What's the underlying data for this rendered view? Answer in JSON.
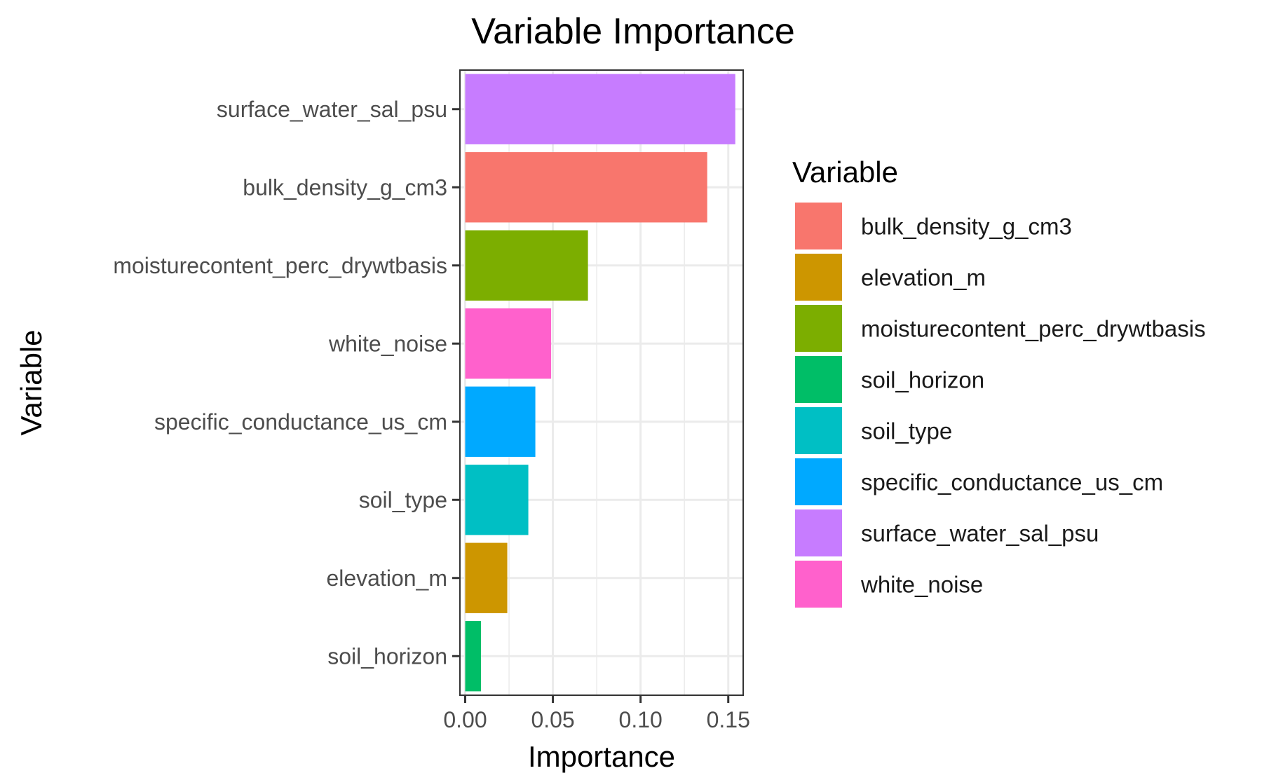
{
  "chart_data": {
    "type": "bar",
    "orientation": "horizontal",
    "title": "Variable Importance",
    "xlabel": "Importance",
    "ylabel": "Variable",
    "xlim": [
      -0.003,
      0.1585
    ],
    "x_ticks": [
      0.0,
      0.05,
      0.1,
      0.15
    ],
    "x_tick_labels": [
      "0.00",
      "0.05",
      "0.10",
      "0.15"
    ],
    "grid": true,
    "categories": [
      "surface_water_sal_psu",
      "bulk_density_g_cm3",
      "moisturecontent_perc_drywtbasis",
      "white_noise",
      "specific_conductance_us_cm",
      "soil_type",
      "elevation_m",
      "soil_horizon"
    ],
    "values": [
      0.154,
      0.138,
      0.07,
      0.049,
      0.04,
      0.036,
      0.024,
      0.009
    ],
    "colors": {
      "bulk_density_g_cm3": "#F8766D",
      "elevation_m": "#CD9600",
      "moisturecontent_perc_drywtbasis": "#7CAE00",
      "soil_horizon": "#00BE67",
      "soil_type": "#00BFC4",
      "specific_conductance_us_cm": "#00A9FF",
      "surface_water_sal_psu": "#C77CFF",
      "white_noise": "#FF61CC"
    },
    "legend": {
      "title": "Variable",
      "placement": "right",
      "entries": [
        "bulk_density_g_cm3",
        "elevation_m",
        "moisturecontent_perc_drywtbasis",
        "soil_horizon",
        "soil_type",
        "specific_conductance_us_cm",
        "surface_water_sal_psu",
        "white_noise"
      ]
    }
  }
}
